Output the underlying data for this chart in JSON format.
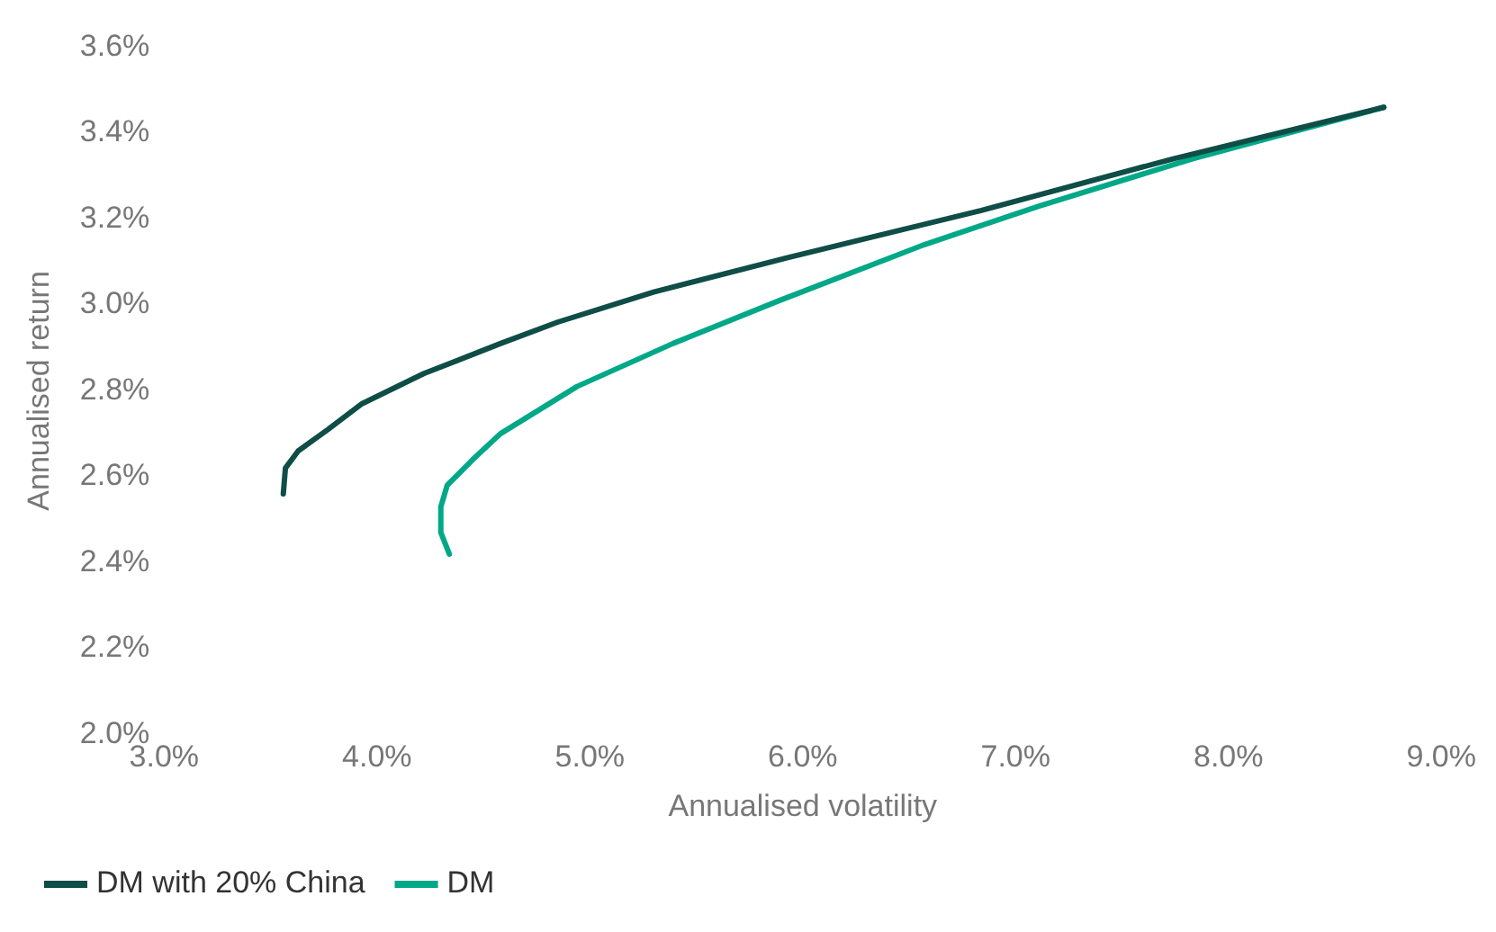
{
  "chart_data": {
    "type": "line",
    "xlabel": "Annualised volatility",
    "ylabel": "Annualised return",
    "xlim": [
      3.0,
      9.0
    ],
    "xticks": [
      {
        "value": 3,
        "label": "3.0%"
      },
      {
        "value": 4,
        "label": "4.0%"
      },
      {
        "value": 5,
        "label": "5.0%"
      },
      {
        "value": 6,
        "label": "6.0%"
      },
      {
        "value": 7,
        "label": "7.0%"
      },
      {
        "value": 8,
        "label": "8.0%"
      },
      {
        "value": 9,
        "label": "9.0%"
      }
    ],
    "ylim": [
      2.0,
      3.6
    ],
    "yticks": [
      {
        "value": 2.0,
        "label": "2.0%"
      },
      {
        "value": 2.2,
        "label": "2.2%"
      },
      {
        "value": 2.4,
        "label": "2.4%"
      },
      {
        "value": 2.6,
        "label": "2.6%"
      },
      {
        "value": 2.8,
        "label": "2.8%"
      },
      {
        "value": 3.0,
        "label": "3.0%"
      },
      {
        "value": 3.2,
        "label": "3.2%"
      },
      {
        "value": 3.4,
        "label": "3.4%"
      },
      {
        "value": 3.6,
        "label": "3.6%"
      }
    ],
    "grid": false,
    "legend": "bottom",
    "marker": "none",
    "line_style": "solid",
    "series": [
      {
        "name": "DM with 20% China",
        "color": "#0f4d47",
        "x": [
          3.56,
          3.57,
          3.63,
          3.77,
          3.93,
          4.22,
          4.58,
          4.85,
          5.3,
          5.93,
          6.84,
          7.74,
          8.73
        ],
        "values": [
          2.56,
          2.62,
          2.66,
          2.71,
          2.77,
          2.84,
          2.91,
          2.96,
          3.03,
          3.11,
          3.22,
          3.34,
          3.46
        ]
      },
      {
        "name": "DM",
        "color": "#00a887",
        "x": [
          4.34,
          4.3,
          4.3,
          4.33,
          4.45,
          4.58,
          4.94,
          5.39,
          5.89,
          6.57,
          7.11,
          7.83,
          8.73
        ],
        "values": [
          2.42,
          2.47,
          2.53,
          2.58,
          2.64,
          2.7,
          2.81,
          2.91,
          3.01,
          3.14,
          3.23,
          3.34,
          3.46
        ]
      }
    ]
  }
}
